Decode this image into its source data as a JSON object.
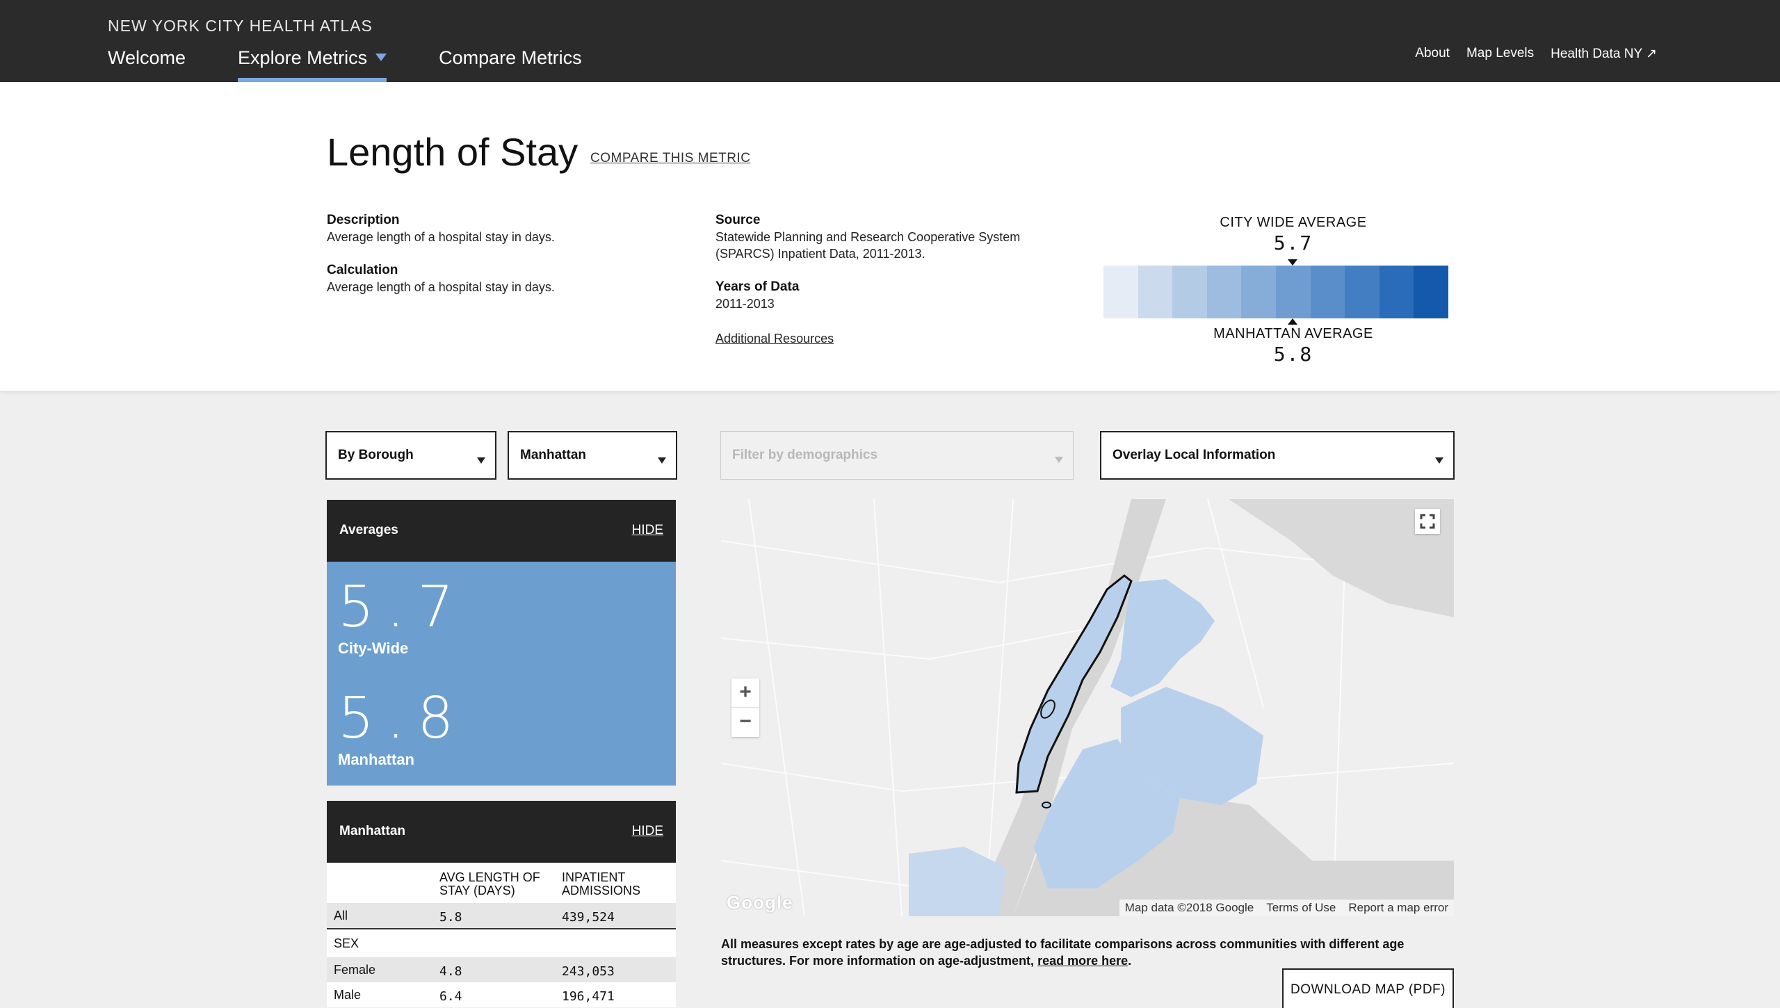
{
  "nav": {
    "brand": "NEW YORK CITY HEALTH ATLAS",
    "main": [
      "Welcome",
      "Explore Metrics",
      "Compare Metrics"
    ],
    "util": [
      "About",
      "Map Levels",
      "Health Data NY ↗"
    ]
  },
  "metric": {
    "title": "Length of Stay",
    "compare_link": "COMPARE THIS METRIC",
    "description_label": "Description",
    "description": "Average length of a hospital stay in days.",
    "calculation_label": "Calculation",
    "calculation": "Average length of a hospital stay in days.",
    "source_label": "Source",
    "source_line1": "Statewide Planning and Research Cooperative System",
    "source_line2": "(SPARCS) Inpatient Data, 2011-2013.",
    "years_label": "Years of Data",
    "years": "2011-2013",
    "resources_link": "Additional Resources",
    "city_avg_label": "CITY WIDE AVERAGE",
    "city_avg": "5.7",
    "area_avg_label": "MANHATTAN AVERAGE",
    "area_avg": "5.8",
    "scale_colors": [
      "#e5ecf5",
      "#cbdaec",
      "#b4cbe5",
      "#9dbcdf",
      "#86acd8",
      "#6f9dd2",
      "#5a8ecb",
      "#437ec2",
      "#2a6cb9",
      "#1559ac"
    ]
  },
  "filters": {
    "level": "By Borough",
    "area": "Manhattan",
    "demographics_placeholder": "Filter by demographics",
    "overlay": "Overlay Local Information"
  },
  "averages": {
    "title": "Averages",
    "hide": "HIDE",
    "city_value": "5.7",
    "city_label": "City-Wide",
    "area_value": "5.8",
    "area_label": "Manhattan"
  },
  "table": {
    "title": "Manhattan",
    "hide": "HIDE",
    "col1": "AVG LENGTH OF STAY (DAYS)",
    "col2": "INPATIENT ADMISSIONS",
    "rows": [
      {
        "label": "All",
        "v1": "5.8",
        "v2": "439,524"
      },
      {
        "label": "SEX",
        "v1": "",
        "v2": ""
      },
      {
        "label": "Female",
        "v1": "4.8",
        "v2": "243,053"
      },
      {
        "label": "Male",
        "v1": "6.4",
        "v2": "196,471"
      }
    ]
  },
  "map": {
    "zoom_in": "+",
    "zoom_out": "−",
    "logo": "Google",
    "attrib": "Map data ©2018 Google",
    "terms": "Terms of Use",
    "report": "Report a map error",
    "borough_color": "#b9d0ec",
    "land_color": "#efefef",
    "water_color": "#d6d6d6"
  },
  "note": {
    "text": "All measures except rates by age are age-adjusted to facilitate comparisons across communities with different age structures. For more information on age-adjustment, ",
    "link": "read more here",
    "end": "."
  },
  "download_button": "DOWNLOAD MAP (PDF)"
}
